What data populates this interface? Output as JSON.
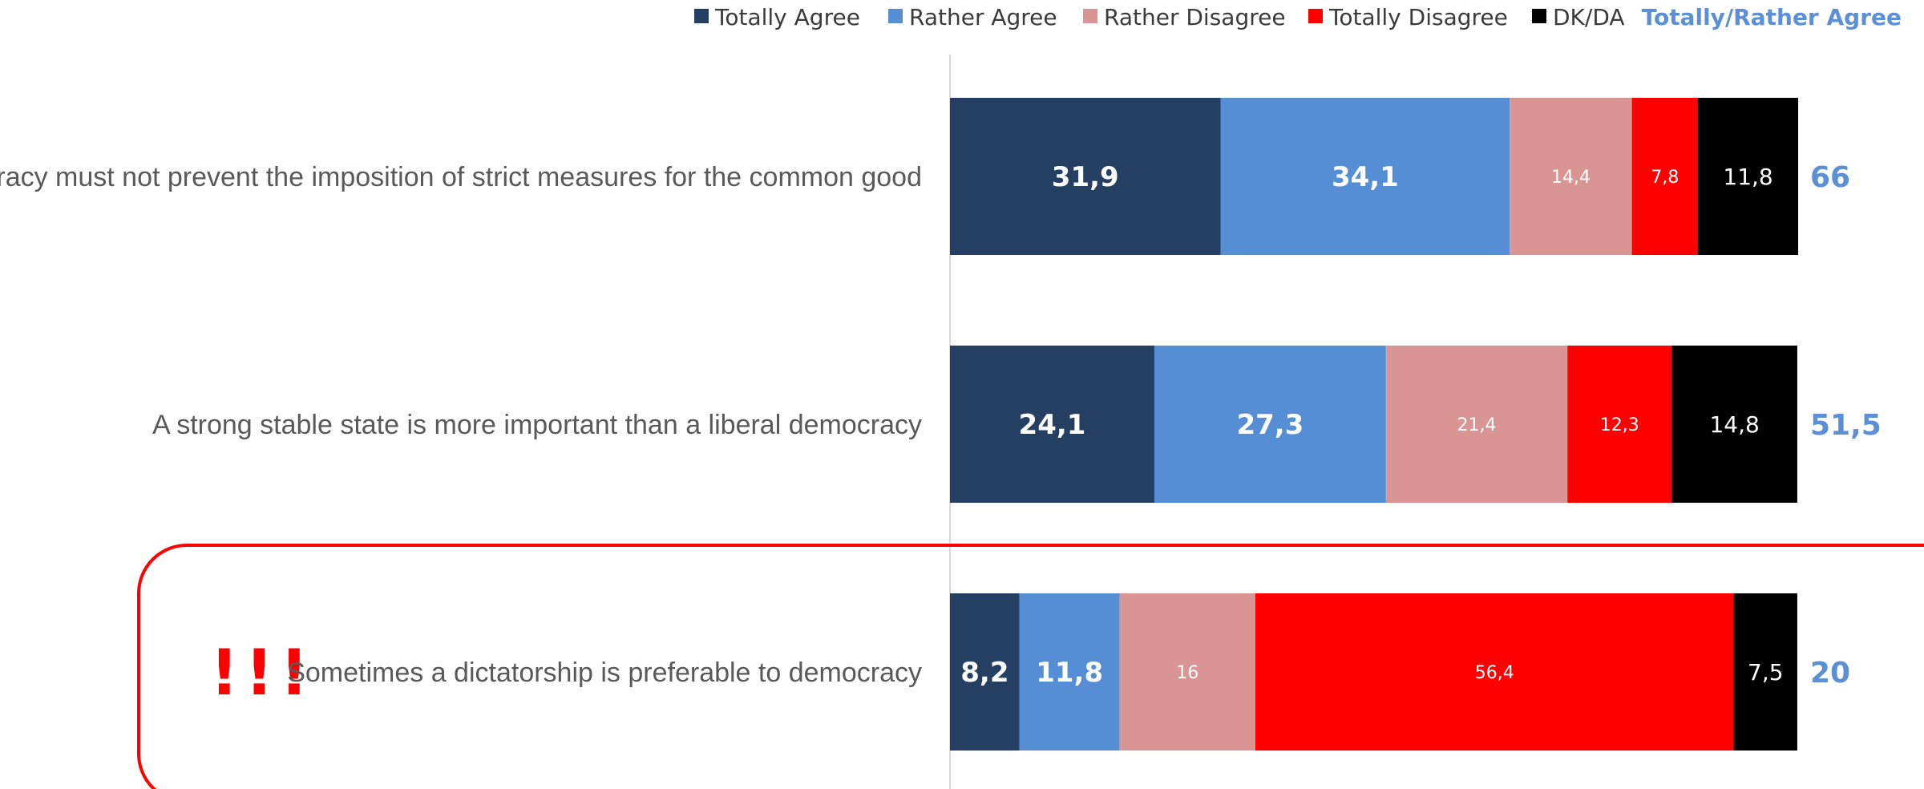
{
  "chart_data": {
    "type": "bar",
    "orientation": "horizontal",
    "stacked": true,
    "categories": [
      "Democracy must not prevent the imposition of strict measures for the common good",
      "A strong stable state is more important than a liberal democracy",
      "Sometimes a dictatorship is preferable to democracy"
    ],
    "series": [
      {
        "name": "Totally Agree",
        "color": "#243f61",
        "values": [
          31.9,
          24.1,
          8.2
        ],
        "labels": [
          "31,9",
          "24,1",
          "8,2"
        ]
      },
      {
        "name": "Rather Agree",
        "color": "#558ed5",
        "values": [
          34.1,
          27.3,
          11.8
        ],
        "labels": [
          "34,1",
          "27,3",
          "11,8"
        ]
      },
      {
        "name": "Rather Disagree",
        "color": "#d99594",
        "values": [
          14.4,
          21.4,
          16
        ],
        "labels": [
          "14,4",
          "21,4",
          "16"
        ]
      },
      {
        "name": "Totally Disagree",
        "color": "#ff0000",
        "values": [
          7.8,
          12.3,
          56.4
        ],
        "labels": [
          "7,8",
          "12,3",
          "56,4"
        ]
      },
      {
        "name": "DK/DA",
        "color": "#000000",
        "values": [
          11.8,
          14.8,
          7.5
        ],
        "labels": [
          "11,8",
          "14,8",
          "7,5"
        ]
      }
    ],
    "totals": {
      "name": "Totally/Rather Agree",
      "color": "#5b8fd6",
      "values": [
        66,
        51.5,
        20
      ],
      "labels": [
        "66",
        "51,5",
        "20"
      ]
    },
    "xlim": [
      0,
      100
    ],
    "grid": false,
    "legend_position": "top-right",
    "highlight": {
      "category_index": 2,
      "annotation": "!!!",
      "color": "#ff0000"
    }
  }
}
